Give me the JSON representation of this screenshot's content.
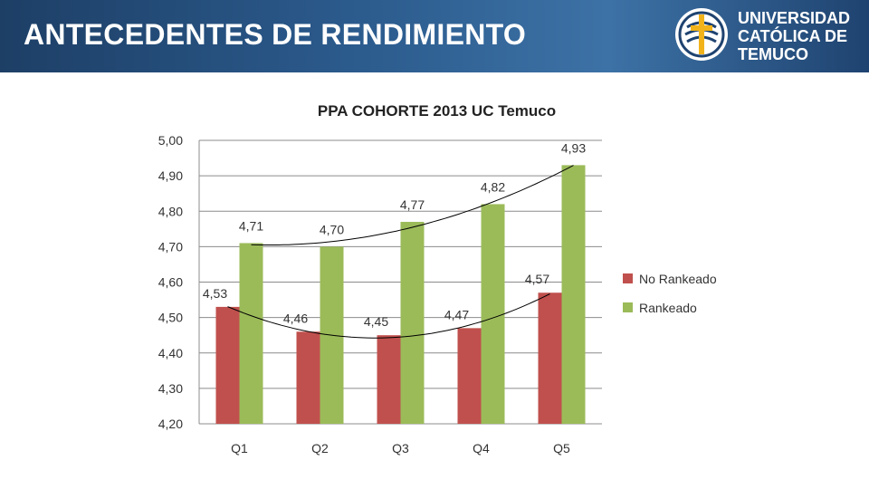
{
  "header": {
    "title": "ANTECEDENTES DE RENDIMIENTO"
  },
  "logo": {
    "line1": "UNIVERSIDAD",
    "line2": "CATÓLICA DE",
    "line3": "TEMUCO",
    "seal_color": "#1f4370",
    "cross_color": "#f2b31a"
  },
  "chart_data": {
    "type": "bar",
    "title": "PPA COHORTE 2013 UC Temuco",
    "categories": [
      "Q1",
      "Q2",
      "Q3",
      "Q4",
      "Q5"
    ],
    "series": [
      {
        "name": "No Rankeado",
        "color": "#c0504d",
        "values": [
          4.53,
          4.46,
          4.45,
          4.47,
          4.57
        ],
        "labels": [
          "4,53",
          "4,46",
          "4,45",
          "4,47",
          "4,57"
        ]
      },
      {
        "name": "Rankeado",
        "color": "#9bbb59",
        "values": [
          4.71,
          4.7,
          4.77,
          4.82,
          4.93
        ],
        "labels": [
          "4,71",
          "4,70",
          "4,77",
          "4,82",
          "4,93"
        ]
      }
    ],
    "ylim": [
      4.2,
      5.0
    ],
    "yticks": [
      "4,20",
      "4,30",
      "4,40",
      "4,50",
      "4,60",
      "4,70",
      "4,80",
      "4,90",
      "5,00"
    ],
    "trendlines": "polynomial",
    "grid": true,
    "legend": "right"
  }
}
